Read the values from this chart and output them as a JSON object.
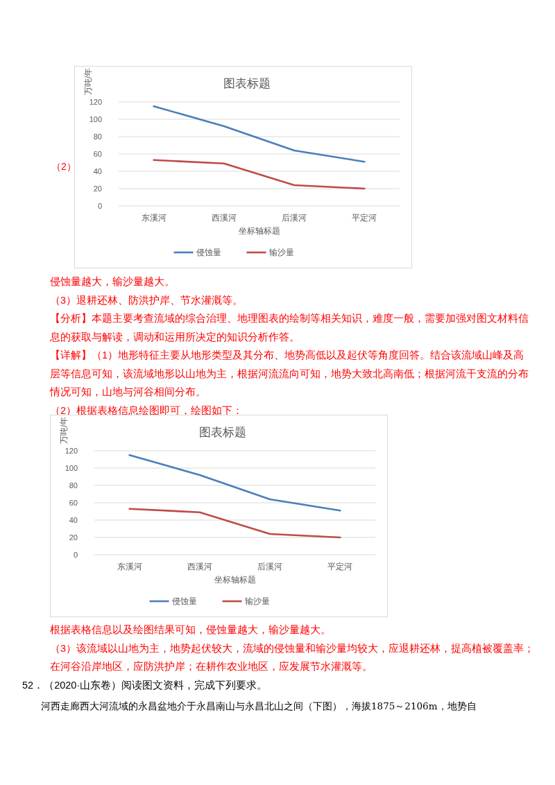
{
  "chart_data": [
    {
      "type": "line",
      "title": "图表标题",
      "xlabel": "坐标轴标题",
      "ylabel": "万吨/年",
      "categories": [
        "东溪河",
        "西溪河",
        "后溪河",
        "平定河"
      ],
      "series": [
        {
          "name": "侵蚀量",
          "color": "#4a7ebb",
          "values": [
            115,
            92,
            64,
            51
          ]
        },
        {
          "name": "输沙量",
          "color": "#be4b48",
          "values": [
            53,
            49,
            24,
            20
          ]
        }
      ],
      "ylim": [
        0,
        120
      ],
      "yticks": [
        0,
        20,
        40,
        60,
        80,
        100,
        120
      ],
      "grid": "y",
      "legend": "bottom",
      "marker": "none",
      "line_style": "solid",
      "annotations": [
        "（2）",
        "侵蚀量越大，输沙量越大。",
        "（3）退耕还林、防洪护岸、节水灌溉等。",
        "【分析】本题主要考查流域的综合治理、地理图表的绘制等相关知识，难度一般，需要加强对图文材料信息的获取与解读，调动和运用所决定的知识分析作答。",
        "【详解】（1）地形特征主要从地形类型及其分布、地势高低以及起伏等角度回答。结合该流域山峰及高层等信息可知，该流域地形以山地为主，根据河流流向可知，地势大致北高南低；根据河流干支流的分布情况可知，山地与河谷相间分布。",
        "（2）根据表格信息绘图即可，绘图如下："
      ]
    },
    {
      "type": "line",
      "title": "图表标题",
      "xlabel": "坐标轴标题",
      "ylabel": "万吨/年",
      "categories": [
        "东溪河",
        "西溪河",
        "后溪河",
        "平定河"
      ],
      "series": [
        {
          "name": "侵蚀量",
          "color": "#4a7ebb",
          "values": [
            115,
            92,
            64,
            51
          ]
        },
        {
          "name": "输沙量",
          "color": "#be4b48",
          "values": [
            53,
            49,
            24,
            20
          ]
        }
      ],
      "ylim": [
        0,
        120
      ],
      "yticks": [
        0,
        20,
        40,
        60,
        80,
        100,
        120
      ],
      "grid": "y",
      "legend": "bottom",
      "marker": "none",
      "line_style": "solid",
      "annotations": [
        "根据表格信息以及绘图结果可知，侵蚀量越大，输沙量越大。",
        "（3）该流域以山地为主，地势起伏较大，流域的侵蚀量和输沙量均较大，应退耕还林，提高植被覆盖率；在河谷沿岸地区，应防洪护岸；在耕作农业地区，应发展节水灌溉等。",
        "52．（2020·山东卷）阅读图文资料，完成下列要求。",
        "河西走廊西大河流域的永昌盆地介于永昌南山与永昌北山之间（下图），海拔1875～2106m，地势自"
      ]
    }
  ]
}
